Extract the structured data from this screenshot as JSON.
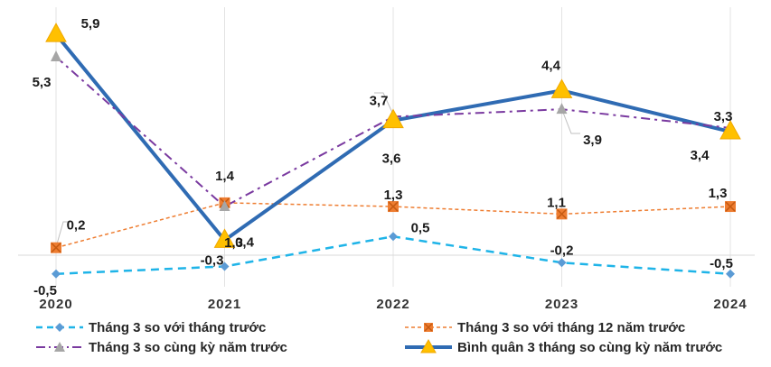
{
  "chart_data": {
    "type": "line",
    "x": [
      "2020",
      "2021",
      "2022",
      "2023",
      "2024"
    ],
    "ylim": [
      -1.5,
      6.5
    ],
    "grid": "vertical",
    "legend_position": "bottom",
    "series": [
      {
        "name": "Tháng 3 so với tháng trước",
        "values": [
          -0.5,
          -0.3,
          0.5,
          -0.2,
          -0.5
        ],
        "labels": [
          "-0,5",
          "-0,3",
          "0,5",
          "-0,2",
          "-0,5"
        ],
        "color": "#1fb4e8",
        "line_style": "dashed",
        "marker": "diamond"
      },
      {
        "name": "Tháng 3 so với tháng 12 năm trước",
        "values": [
          0.2,
          1.4,
          1.3,
          1.1,
          1.3
        ],
        "labels": [
          "0,2",
          "1,4",
          "1,3",
          "1,1",
          "1,3"
        ],
        "color": "#ee7d31",
        "line_style": "short-dash",
        "marker": "square-x"
      },
      {
        "name": "Tháng 3 so cùng kỳ năm trước",
        "values": [
          5.3,
          1.3,
          3.7,
          3.9,
          3.4
        ],
        "labels": [
          "5,3",
          "1,3",
          "3,7",
          "3,9",
          "3,4"
        ],
        "color": "#7a3aa0",
        "line_style": "dash-dot",
        "marker": "triangle-gray"
      },
      {
        "name": "Bình quân 3 tháng so cùng kỳ năm trước",
        "values": [
          5.9,
          0.4,
          3.6,
          4.4,
          3.3
        ],
        "labels": [
          "5,9",
          "0,4",
          "3,6",
          "4,4",
          "3,3"
        ],
        "color": "#2f6bb3",
        "line_style": "solid",
        "marker": "triangle-gold"
      }
    ]
  }
}
